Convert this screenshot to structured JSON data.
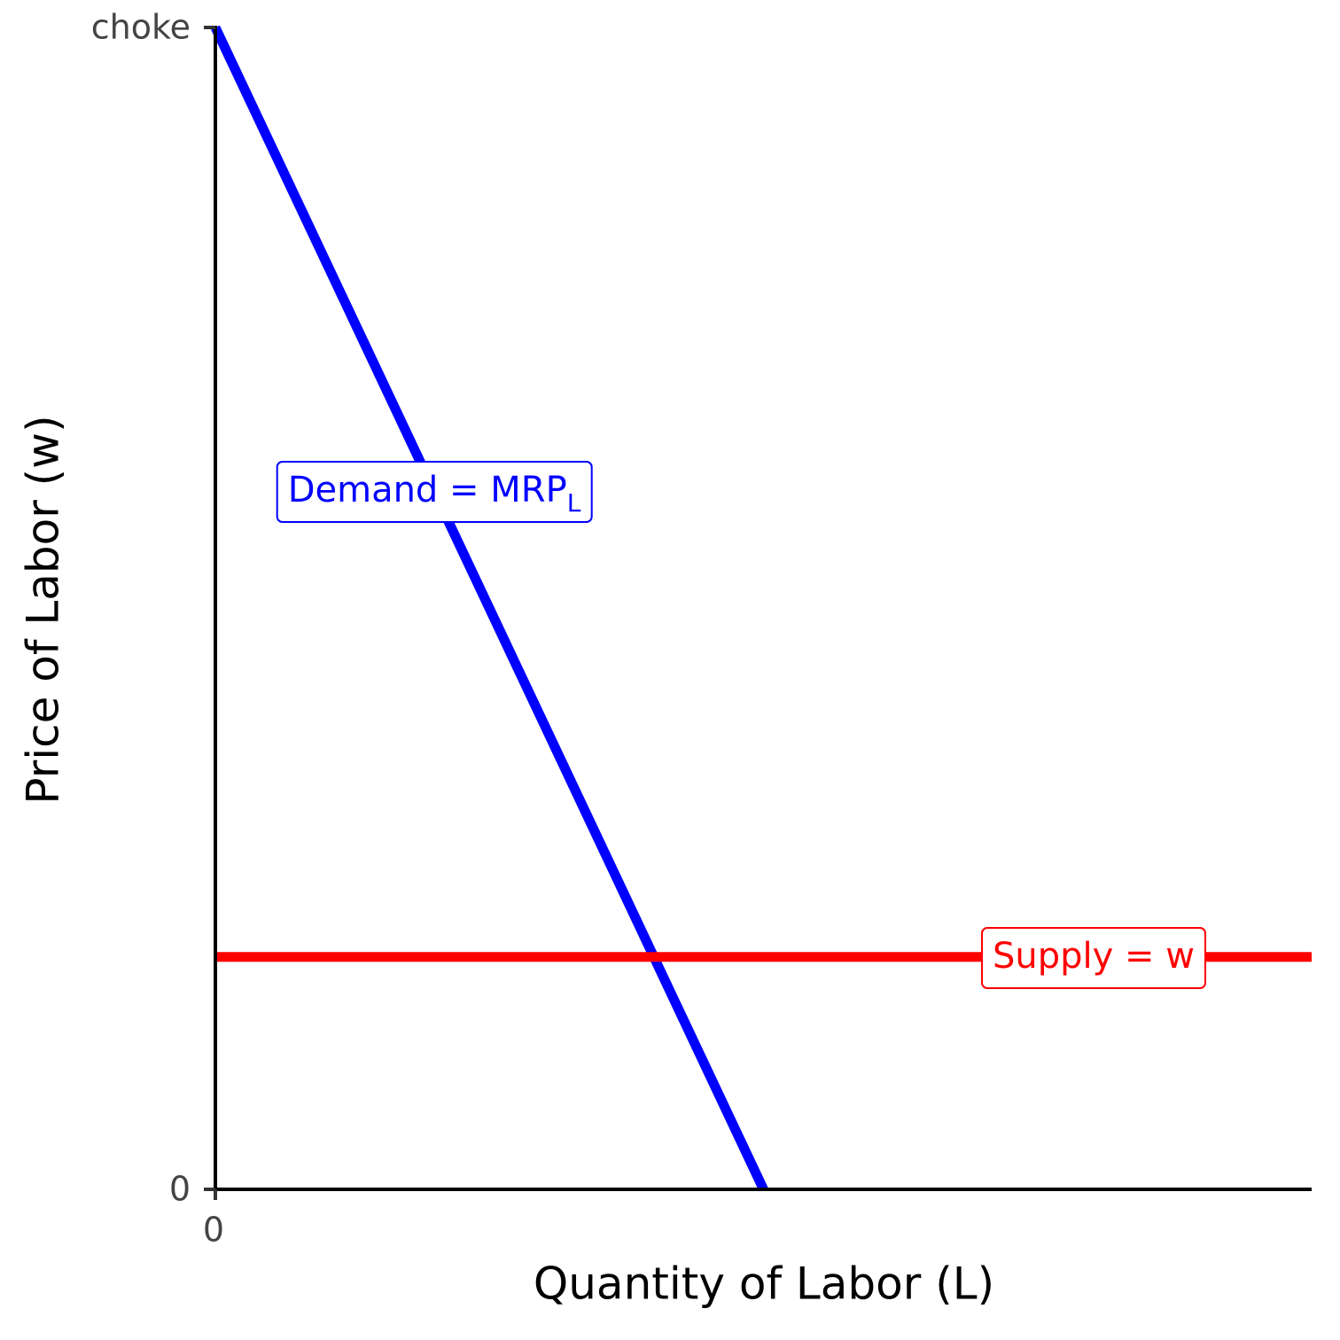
{
  "chart_data": {
    "type": "line",
    "x_label": "Quantity of Labor (L)",
    "y_label": "Price of Labor (w)",
    "xlim": [
      0,
      20
    ],
    "ylim": [
      0,
      10
    ],
    "xticks": [
      0
    ],
    "yticks": [
      0,
      {
        "value": 10,
        "label": "choke"
      }
    ],
    "grid": false,
    "series": [
      {
        "name": "Demand = MRP",
        "name_subscript": "L",
        "color": "#0000ff",
        "x": [
          0,
          10
        ],
        "values": [
          10,
          0
        ]
      },
      {
        "name": "Supply = w",
        "color": "#ff0000",
        "x": [
          0,
          20
        ],
        "values": [
          2,
          2
        ]
      }
    ]
  }
}
